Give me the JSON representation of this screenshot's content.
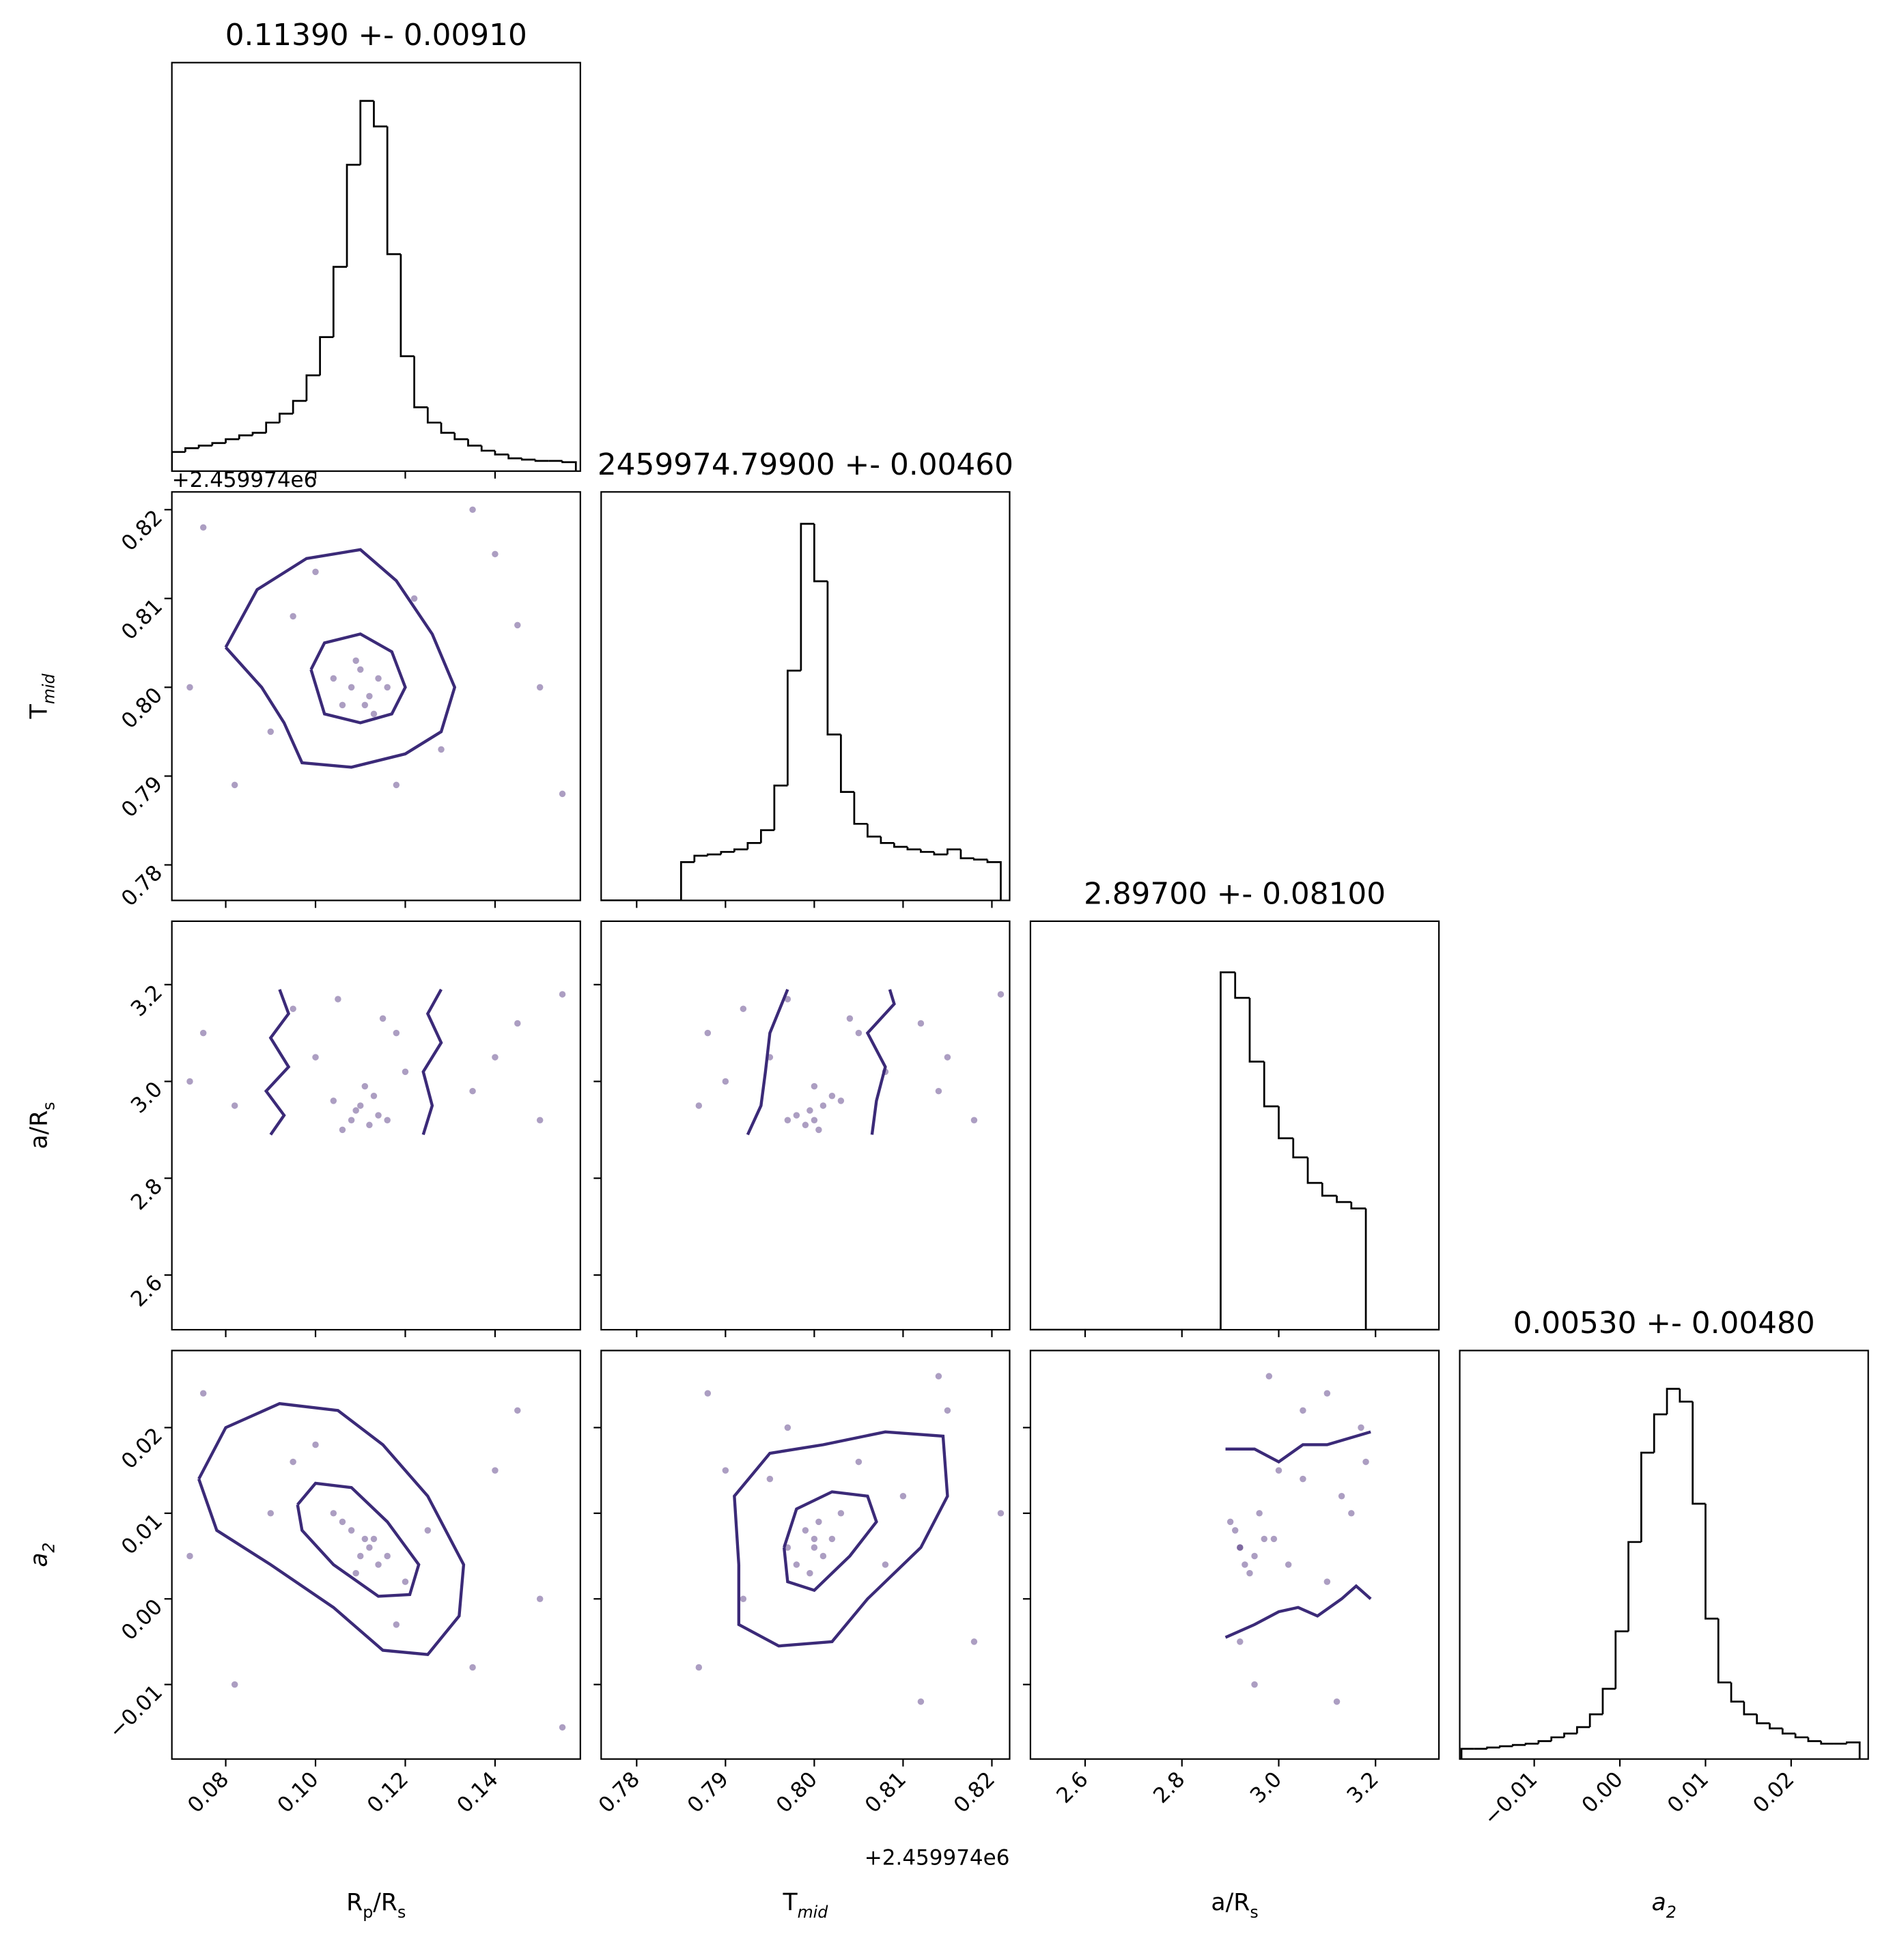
{
  "chart_data": {
    "type": "corner",
    "offset_text": "+2.459974e6",
    "hist_color": "#000000",
    "point_color": "#482878",
    "contour_color": "#3b2a78",
    "params": [
      {
        "label": [
          "R",
          "p",
          "/R",
          "s"
        ],
        "title": "0.11390 +- 0.00910",
        "lim": [
          0.068,
          0.159
        ],
        "ticks": [
          0.08,
          {
            "value": 0.1,
            "label": "0.10"
          },
          0.12,
          0.14
        ],
        "hist": {
          "ylim": [
            0,
            320
          ],
          "bins": [
            0.068,
            0.071,
            0.074,
            0.077,
            0.08,
            0.083,
            0.086,
            0.089,
            0.092,
            0.095,
            0.098,
            0.101,
            0.104,
            0.107,
            0.11,
            0.113,
            0.116,
            0.119,
            0.122,
            0.125,
            0.128,
            0.131,
            0.134,
            0.137,
            0.14,
            0.143,
            0.146,
            0.149,
            0.152,
            0.155,
            0.158
          ],
          "counts": [
            15,
            18,
            20,
            22,
            25,
            28,
            30,
            38,
            45,
            55,
            75,
            105,
            160,
            240,
            290,
            270,
            170,
            90,
            50,
            38,
            30,
            25,
            20,
            16,
            13,
            10,
            9,
            8,
            8,
            7
          ]
        }
      },
      {
        "label": [
          "T",
          "mid"
        ],
        "title": "2459974.79900 +- 0.00460",
        "lim": [
          0.776,
          0.822
        ],
        "ticks": [
          0.78,
          0.79,
          {
            "value": 0.8,
            "label": "0.80"
          },
          0.81,
          0.82
        ],
        "hist": {
          "ylim": [
            0,
            320
          ],
          "bins": [
            0.776,
            0.7775,
            0.779,
            0.7805,
            0.782,
            0.7835,
            0.785,
            0.7865,
            0.788,
            0.7895,
            0.791,
            0.7925,
            0.794,
            0.7955,
            0.797,
            0.7985,
            0.8,
            0.8015,
            0.803,
            0.8045,
            0.806,
            0.8075,
            0.809,
            0.8105,
            0.812,
            0.8135,
            0.815,
            0.8165,
            0.818,
            0.8195,
            0.821
          ],
          "counts": [
            0,
            0,
            0,
            0,
            0,
            0,
            30,
            35,
            36,
            38,
            40,
            45,
            55,
            90,
            180,
            295,
            250,
            130,
            85,
            60,
            50,
            45,
            42,
            40,
            38,
            36,
            40,
            33,
            32,
            30
          ]
        }
      },
      {
        "label": [
          "a/R",
          "s"
        ],
        "title": "2.89700 +- 0.08100",
        "lim": [
          2.487,
          3.331
        ],
        "ticks": [
          2.6,
          2.8,
          {
            "value": 3,
            "label": "3.0"
          },
          3.2
        ],
        "hist": {
          "ylim": [
            0,
            320
          ],
          "bins": [
            2.49,
            2.52,
            2.55,
            2.58,
            2.61,
            2.64,
            2.67,
            2.7,
            2.73,
            2.76,
            2.79,
            2.82,
            2.85,
            2.88,
            2.91,
            2.94,
            2.97,
            3.0,
            3.03,
            3.06,
            3.09,
            3.12,
            3.15,
            3.18,
            3.21,
            3.24,
            3.27,
            3.3,
            3.33
          ],
          "counts": [
            0,
            0,
            0,
            0,
            0,
            0,
            0,
            0,
            0,
            0,
            0,
            0,
            0,
            280,
            260,
            210,
            175,
            150,
            135,
            115,
            105,
            100,
            95,
            0,
            0,
            0,
            0,
            0
          ]
        }
      },
      {
        "label": [
          "a",
          "2"
        ],
        "title": "0.00530 +- 0.00480",
        "lim": [
          -0.0187,
          0.029
        ],
        "ticks": [
          {
            "value": -0.01,
            "label": "−0.01"
          },
          {
            "value": 0,
            "label": "0.00"
          },
          0.01,
          0.02
        ],
        "hist": {
          "ylim": [
            0,
            320
          ],
          "bins": [
            -0.0185,
            -0.017,
            -0.0155,
            -0.014,
            -0.0125,
            -0.011,
            -0.0095,
            -0.008,
            -0.0065,
            -0.005,
            -0.0035,
            -0.002,
            -0.0005,
            0.001,
            0.0025,
            0.004,
            0.0055,
            0.007,
            0.0085,
            0.01,
            0.0115,
            0.013,
            0.0145,
            0.016,
            0.0175,
            0.019,
            0.0205,
            0.022,
            0.0235,
            0.025,
            0.0265,
            0.028
          ],
          "counts": [
            8,
            8,
            9,
            10,
            11,
            12,
            14,
            17,
            20,
            25,
            35,
            55,
            100,
            170,
            240,
            270,
            290,
            280,
            200,
            110,
            60,
            45,
            35,
            28,
            24,
            20,
            17,
            14,
            12,
            12,
            13
          ]
        }
      }
    ],
    "panels": [
      {
        "x": [
          0.108,
          0.112,
          0.11,
          0.114,
          0.106,
          0.113,
          0.109,
          0.116,
          0.104,
          0.111,
          0.095,
          0.122,
          0.09,
          0.128,
          0.1,
          0.118,
          0.075,
          0.082,
          0.14,
          0.15,
          0.155,
          0.145,
          0.072,
          0.135
        ],
        "y": [
          0.8,
          0.799,
          0.802,
          0.801,
          0.798,
          0.797,
          0.803,
          0.8,
          0.801,
          0.798,
          0.808,
          0.81,
          0.795,
          0.793,
          0.813,
          0.789,
          0.818,
          0.789,
          0.815,
          0.8,
          0.788,
          0.807,
          0.8,
          0.82
        ],
        "contours": [
          {
            "x": [
              0.08,
              0.087,
              0.098,
              0.11,
              0.118,
              0.126,
              0.131,
              0.128,
              0.12,
              0.108,
              0.097,
              0.093,
              0.088,
              0.08
            ],
            "y": [
              0.8045,
              0.811,
              0.8145,
              0.8155,
              0.812,
              0.806,
              0.8,
              0.795,
              0.7925,
              0.791,
              0.7915,
              0.796,
              0.8,
              0.8045
            ]
          },
          {
            "x": [
              0.099,
              0.102,
              0.11,
              0.117,
              0.12,
              0.117,
              0.11,
              0.102,
              0.099
            ],
            "y": [
              0.802,
              0.805,
              0.806,
              0.804,
              0.8,
              0.797,
              0.796,
              0.797,
              0.802
            ]
          }
        ]
      },
      {
        "x": [
          0.108,
          0.112,
          0.11,
          0.114,
          0.106,
          0.113,
          0.109,
          0.116,
          0.104,
          0.111,
          0.1,
          0.118,
          0.095,
          0.12,
          0.105,
          0.115,
          0.075,
          0.082,
          0.14,
          0.15,
          0.155,
          0.145,
          0.072,
          0.135
        ],
        "y": [
          2.92,
          2.91,
          2.95,
          2.93,
          2.9,
          2.97,
          2.94,
          2.92,
          2.96,
          2.99,
          3.05,
          3.1,
          3.15,
          3.02,
          3.17,
          3.13,
          3.1,
          2.95,
          3.05,
          2.92,
          3.18,
          3.12,
          3.0,
          2.98
        ],
        "contours": [
          {
            "x": [
              0.09,
              0.093,
              0.089,
              0.094,
              0.09,
              0.094,
              0.092
            ],
            "y": [
              2.89,
              2.93,
              2.98,
              3.03,
              3.09,
              3.14,
              3.19
            ]
          },
          {
            "x": [
              0.124,
              0.126,
              0.124,
              0.128,
              0.125,
              0.128
            ],
            "y": [
              2.89,
              2.95,
              3.02,
              3.08,
              3.14,
              3.19
            ]
          }
        ]
      },
      {
        "x": [
          0.8,
          0.799,
          0.801,
          0.798,
          0.8005,
          0.802,
          0.7995,
          0.797,
          0.803,
          0.8,
          0.795,
          0.805,
          0.792,
          0.808,
          0.797,
          0.804,
          0.788,
          0.787,
          0.815,
          0.818,
          0.821,
          0.812,
          0.79,
          0.814
        ],
        "y": [
          2.92,
          2.91,
          2.95,
          2.93,
          2.9,
          2.97,
          2.94,
          2.92,
          2.96,
          2.99,
          3.05,
          3.1,
          3.15,
          3.02,
          3.17,
          3.13,
          3.1,
          2.95,
          3.05,
          2.92,
          3.18,
          3.12,
          3.0,
          2.98
        ],
        "contours": [
          {
            "x": [
              0.7925,
              0.794,
              0.7945,
              0.795,
              0.797
            ],
            "y": [
              2.89,
              2.95,
              3.02,
              3.1,
              3.19
            ]
          },
          {
            "x": [
              0.8065,
              0.807,
              0.808,
              0.806,
              0.809,
              0.8085
            ],
            "y": [
              2.89,
              2.96,
              3.03,
              3.1,
              3.16,
              3.19
            ]
          }
        ]
      },
      {
        "x": [
          0.108,
          0.112,
          0.11,
          0.114,
          0.106,
          0.113,
          0.109,
          0.116,
          0.104,
          0.111,
          0.095,
          0.12,
          0.09,
          0.125,
          0.1,
          0.118,
          0.075,
          0.082,
          0.14,
          0.15,
          0.155,
          0.145,
          0.072,
          0.135
        ],
        "y": [
          0.008,
          0.006,
          0.005,
          0.004,
          0.009,
          0.007,
          0.003,
          0.005,
          0.01,
          0.007,
          0.016,
          0.002,
          0.01,
          0.008,
          0.018,
          -0.003,
          0.024,
          -0.01,
          0.015,
          0.0,
          -0.015,
          0.022,
          0.005,
          -0.008
        ],
        "contours": [
          {
            "x": [
              0.074,
              0.08,
              0.092,
              0.105,
              0.115,
              0.125,
              0.133,
              0.132,
              0.125,
              0.115,
              0.104,
              0.09,
              0.078,
              0.074
            ],
            "y": [
              0.014,
              0.02,
              0.0228,
              0.022,
              0.018,
              0.012,
              0.004,
              -0.002,
              -0.0065,
              -0.006,
              -0.001,
              0.004,
              0.008,
              0.014
            ]
          },
          {
            "x": [
              0.096,
              0.1,
              0.108,
              0.116,
              0.123,
              0.121,
              0.114,
              0.104,
              0.097,
              0.096
            ],
            "y": [
              0.011,
              0.0135,
              0.013,
              0.009,
              0.004,
              0.0005,
              0.0003,
              0.004,
              0.008,
              0.011
            ]
          }
        ]
      },
      {
        "x": [
          0.8,
          0.799,
          0.801,
          0.798,
          0.8005,
          0.802,
          0.7995,
          0.797,
          0.803,
          0.8,
          0.795,
          0.805,
          0.792,
          0.808,
          0.797,
          0.81,
          0.788,
          0.787,
          0.815,
          0.818,
          0.821,
          0.812,
          0.79,
          0.814
        ],
        "y": [
          0.006,
          0.008,
          0.005,
          0.004,
          0.009,
          0.007,
          0.003,
          0.006,
          0.01,
          0.007,
          0.014,
          0.016,
          0.0,
          0.004,
          0.02,
          0.012,
          0.024,
          -0.008,
          0.022,
          -0.005,
          0.01,
          -0.012,
          0.015,
          0.026
        ],
        "contours": [
          {
            "x": [
              0.7915,
              0.791,
              0.795,
              0.801,
              0.808,
              0.8145,
              0.815,
              0.812,
              0.806,
              0.802,
              0.796,
              0.7915,
              0.7915
            ],
            "y": [
              0.004,
              0.012,
              0.017,
              0.018,
              0.0195,
              0.019,
              0.012,
              0.006,
              0.0,
              -0.005,
              -0.0055,
              -0.003,
              0.004
            ]
          },
          {
            "x": [
              0.7966,
              0.798,
              0.802,
              0.806,
              0.807,
              0.804,
              0.8,
              0.797,
              0.7966
            ],
            "y": [
              0.006,
              0.0105,
              0.0125,
              0.012,
              0.009,
              0.005,
              0.001,
              0.002,
              0.006
            ]
          }
        ]
      },
      {
        "x": [
          2.92,
          2.91,
          2.95,
          2.93,
          2.9,
          2.97,
          2.94,
          2.92,
          2.96,
          2.99,
          3.05,
          3.1,
          3.15,
          3.02,
          3.17,
          3.13,
          3.1,
          2.95,
          3.05,
          2.92,
          3.18,
          3.12,
          3.0,
          2.98
        ],
        "y": [
          0.006,
          0.008,
          0.005,
          0.004,
          0.009,
          0.007,
          0.003,
          0.006,
          0.01,
          0.007,
          0.014,
          0.002,
          0.01,
          0.004,
          0.02,
          0.012,
          0.024,
          -0.01,
          0.022,
          -0.005,
          0.016,
          -0.012,
          0.015,
          0.026
        ],
        "contours": [
          {
            "x": [
              2.89,
              2.95,
              3.0,
              3.05,
              3.1,
              3.19
            ],
            "y": [
              0.0175,
              0.0175,
              0.016,
              0.018,
              0.018,
              0.0195
            ]
          },
          {
            "x": [
              2.89,
              2.95,
              3.0,
              3.04,
              3.08,
              3.13,
              3.16,
              3.19
            ],
            "y": [
              -0.0045,
              -0.003,
              -0.0015,
              -0.001,
              -0.002,
              0.0,
              0.0015,
              0.0
            ]
          }
        ]
      }
    ]
  }
}
